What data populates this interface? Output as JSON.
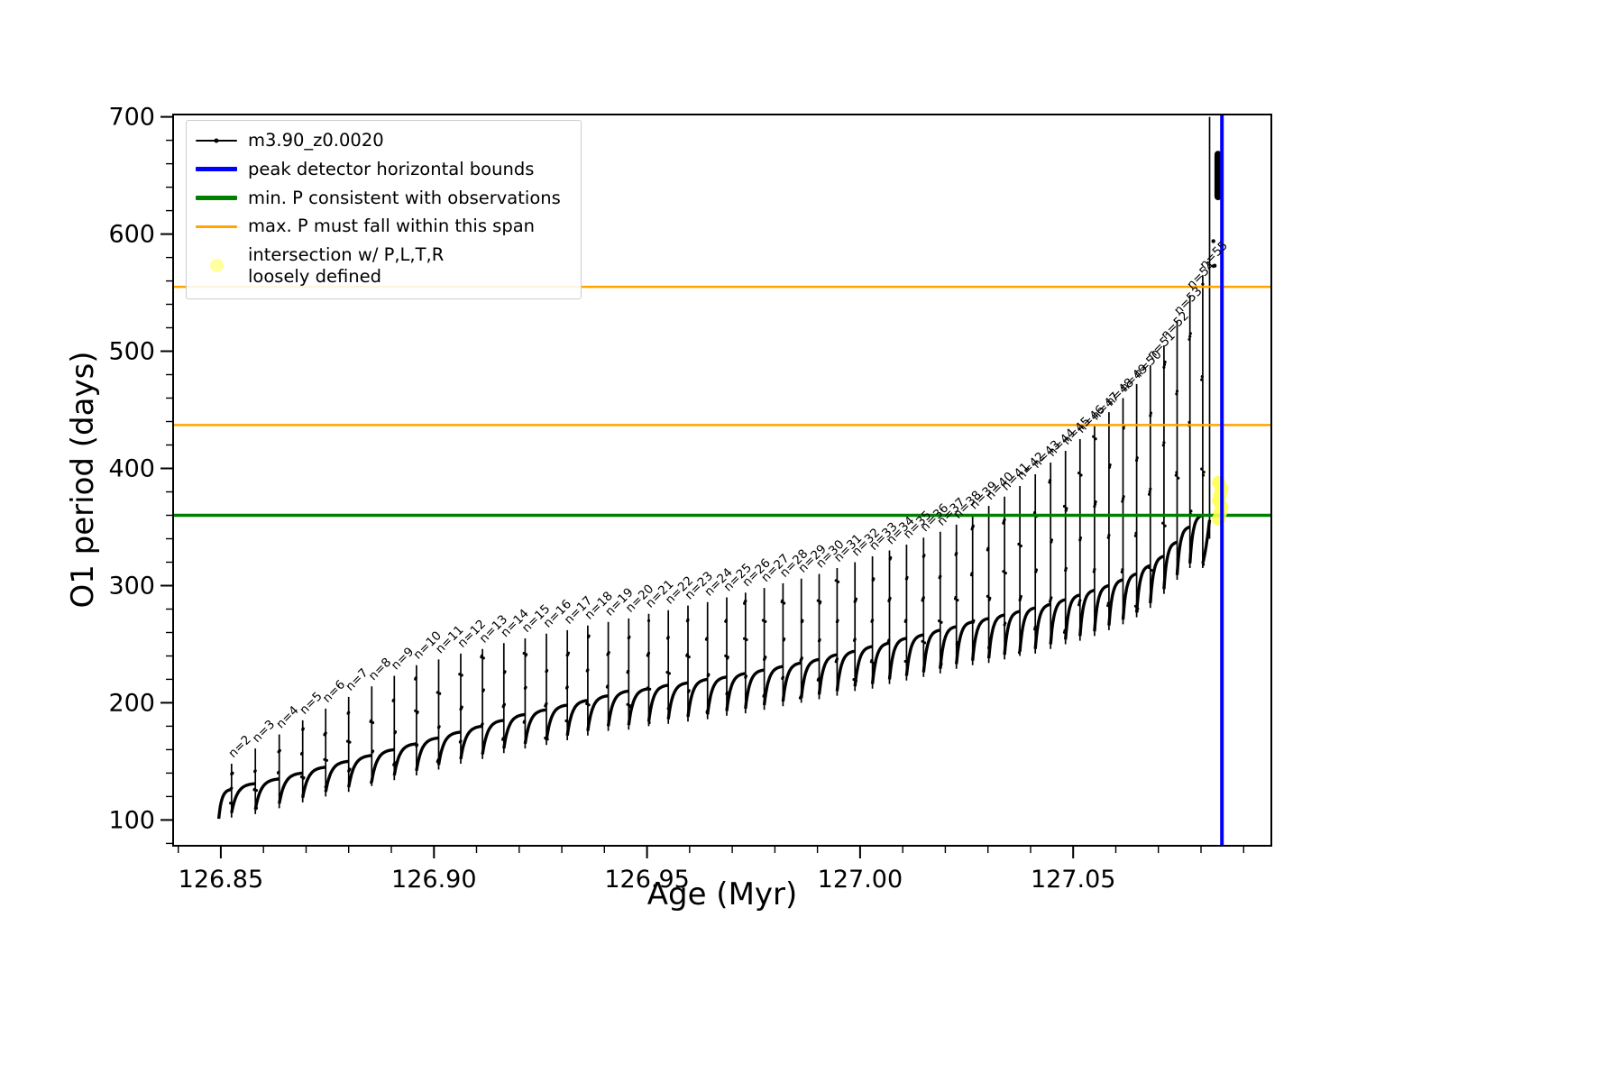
{
  "figure": {
    "background": "#ffffff"
  },
  "legend": {
    "items": [
      {
        "label": "m3.90_z0.0020",
        "sample": {
          "kind": "line-dot",
          "color": "#000000",
          "thickness": 1.5
        }
      },
      {
        "label": "peak detector horizontal bounds",
        "sample": {
          "kind": "line",
          "color": "#0000ff",
          "thickness": 5
        }
      },
      {
        "label": "min. P consistent with observations",
        "sample": {
          "kind": "line",
          "color": "#008000",
          "thickness": 5
        }
      },
      {
        "label": "max. P must fall within this span",
        "sample": {
          "kind": "line",
          "color": "#ffa500",
          "thickness": 3
        }
      },
      {
        "label": "intersection w/ P,L,T,R\nloosely defined",
        "sample": {
          "kind": "circle",
          "color": "#ffff4d",
          "size": 15,
          "opacity": 0.55
        }
      }
    ]
  },
  "chart_data": {
    "type": "line",
    "title": "",
    "xlabel": "Age (Myr)",
    "ylabel": "O1 period (days)",
    "xlim": [
      126.8388,
      127.0965
    ],
    "ylim": [
      78,
      702
    ],
    "x_major_ticks": [
      126.85,
      126.9,
      126.95,
      127.0,
      127.05
    ],
    "x_tick_labels": [
      "126.85",
      "126.90",
      "126.95",
      "127.00",
      "127.05"
    ],
    "x_minor_step": 0.01,
    "y_major_ticks": [
      100,
      200,
      300,
      400,
      500,
      600,
      700
    ],
    "y_tick_labels": [
      "100",
      "200",
      "300",
      "400",
      "500",
      "600",
      "700"
    ],
    "y_minor_step": 20,
    "grid": false,
    "legend_position": "upper-left",
    "tooth_label_prefix": "n=",
    "x_start": 126.8495,
    "horizontal_lines": [
      {
        "name": "max-P-span-upper",
        "y": 555,
        "color": "#ffa500",
        "width": 2.5
      },
      {
        "name": "max-P-span-lower",
        "y": 437,
        "color": "#ffa500",
        "width": 2.5
      },
      {
        "name": "min-P-observed",
        "y": 360,
        "color": "#008000",
        "width": 3.5
      }
    ],
    "vertical_lines": [
      {
        "name": "peak-detector-bound",
        "x": 127.0849,
        "color": "#0000ff",
        "width": 4
      }
    ],
    "intersection_cluster": {
      "x": 127.0845,
      "y_min": 357,
      "y_max": 388,
      "color": "#ffff4d"
    },
    "tail": {
      "x_start": 127.0804,
      "y_start": 319,
      "x_end": 127.082,
      "y_end": 356
    },
    "final_spike": {
      "x": 127.082,
      "y_min": 340,
      "y_max": 700
    },
    "top_cluster": {
      "x": 127.084,
      "y_min": 632,
      "y_max": 668
    },
    "extra_points": [
      {
        "x": 127.0829,
        "y": 594
      },
      {
        "x": 127.0832,
        "y": 573
      }
    ],
    "series": [
      {
        "name": "m3.90_z0.0020",
        "color": "#000000",
        "marker": "point",
        "teeth": [
          {
            "n": 2,
            "x": 126.8525,
            "peak": 148,
            "plateau": 126,
            "trough": 101
          },
          {
            "n": 3,
            "x": 126.8581,
            "peak": 161,
            "plateau": 131,
            "trough": 106
          },
          {
            "n": 4,
            "x": 126.8637,
            "peak": 173,
            "plateau": 135,
            "trough": 109
          },
          {
            "n": 5,
            "x": 126.8692,
            "peak": 185,
            "plateau": 140,
            "trough": 114
          },
          {
            "n": 6,
            "x": 126.8746,
            "peak": 195,
            "plateau": 145,
            "trough": 119
          },
          {
            "n": 7,
            "x": 126.88,
            "peak": 205,
            "plateau": 150,
            "trough": 124
          },
          {
            "n": 8,
            "x": 126.8854,
            "peak": 214,
            "plateau": 155,
            "trough": 128
          },
          {
            "n": 9,
            "x": 126.8907,
            "peak": 223,
            "plateau": 160,
            "trough": 133
          },
          {
            "n": 10,
            "x": 126.8959,
            "peak": 232,
            "plateau": 165,
            "trough": 138
          },
          {
            "n": 11,
            "x": 126.9011,
            "peak": 237,
            "plateau": 170,
            "trough": 142
          },
          {
            "n": 12,
            "x": 126.9063,
            "peak": 242,
            "plateau": 175,
            "trough": 147
          },
          {
            "n": 13,
            "x": 126.9114,
            "peak": 246,
            "plateau": 180,
            "trough": 152
          },
          {
            "n": 14,
            "x": 126.9164,
            "peak": 251,
            "plateau": 185,
            "trough": 156
          },
          {
            "n": 15,
            "x": 126.9214,
            "peak": 255,
            "plateau": 190,
            "trough": 161
          },
          {
            "n": 16,
            "x": 126.9264,
            "peak": 259,
            "plateau": 194,
            "trough": 165
          },
          {
            "n": 17,
            "x": 126.9313,
            "peak": 262,
            "plateau": 198,
            "trough": 168
          },
          {
            "n": 18,
            "x": 126.9361,
            "peak": 266,
            "plateau": 202,
            "trough": 172
          },
          {
            "n": 19,
            "x": 126.9409,
            "peak": 269,
            "plateau": 206,
            "trough": 176
          },
          {
            "n": 20,
            "x": 126.9457,
            "peak": 272,
            "plateau": 210,
            "trough": 180
          },
          {
            "n": 21,
            "x": 126.9504,
            "peak": 276,
            "plateau": 212,
            "trough": 181
          },
          {
            "n": 22,
            "x": 126.955,
            "peak": 279,
            "plateau": 215,
            "trough": 184
          },
          {
            "n": 23,
            "x": 126.9596,
            "peak": 283,
            "plateau": 217,
            "trough": 186
          },
          {
            "n": 24,
            "x": 126.9642,
            "peak": 286,
            "plateau": 220,
            "trough": 188
          },
          {
            "n": 25,
            "x": 126.9687,
            "peak": 290,
            "plateau": 222,
            "trough": 190
          },
          {
            "n": 26,
            "x": 126.9731,
            "peak": 294,
            "plateau": 225,
            "trough": 193
          },
          {
            "n": 27,
            "x": 126.9775,
            "peak": 298,
            "plateau": 228,
            "trough": 195
          },
          {
            "n": 28,
            "x": 126.9819,
            "peak": 302,
            "plateau": 231,
            "trough": 198
          },
          {
            "n": 29,
            "x": 126.9862,
            "peak": 306,
            "plateau": 234,
            "trough": 201
          },
          {
            "n": 30,
            "x": 126.9904,
            "peak": 310,
            "plateau": 237,
            "trough": 204
          },
          {
            "n": 31,
            "x": 126.9946,
            "peak": 315,
            "plateau": 241,
            "trough": 207
          },
          {
            "n": 32,
            "x": 126.9988,
            "peak": 320,
            "plateau": 244,
            "trough": 210
          },
          {
            "n": 33,
            "x": 127.0029,
            "peak": 325,
            "plateau": 248,
            "trough": 214
          },
          {
            "n": 34,
            "x": 127.0069,
            "peak": 330,
            "plateau": 251,
            "trough": 216
          },
          {
            "n": 35,
            "x": 127.0109,
            "peak": 335,
            "plateau": 255,
            "trough": 220
          },
          {
            "n": 36,
            "x": 127.0149,
            "peak": 341,
            "plateau": 258,
            "trough": 223
          },
          {
            "n": 37,
            "x": 127.0188,
            "peak": 346,
            "plateau": 262,
            "trough": 226
          },
          {
            "n": 38,
            "x": 127.0226,
            "peak": 352,
            "plateau": 265,
            "trough": 229
          },
          {
            "n": 39,
            "x": 127.0264,
            "peak": 360,
            "plateau": 269,
            "trough": 233
          },
          {
            "n": 40,
            "x": 127.0302,
            "peak": 368,
            "plateau": 272,
            "trough": 236
          },
          {
            "n": 41,
            "x": 127.0339,
            "peak": 376,
            "plateau": 275,
            "trough": 238
          },
          {
            "n": 42,
            "x": 127.0375,
            "peak": 385,
            "plateau": 278,
            "trough": 241
          },
          {
            "n": 43,
            "x": 127.0411,
            "peak": 395,
            "plateau": 281,
            "trough": 244
          },
          {
            "n": 44,
            "x": 127.0447,
            "peak": 405,
            "plateau": 284,
            "trough": 246
          },
          {
            "n": 45,
            "x": 127.0482,
            "peak": 415,
            "plateau": 288,
            "trough": 250
          },
          {
            "n": 46,
            "x": 127.0516,
            "peak": 425,
            "plateau": 292,
            "trough": 254
          },
          {
            "n": 47,
            "x": 127.055,
            "peak": 436,
            "plateau": 296,
            "trough": 257
          },
          {
            "n": 48,
            "x": 127.0584,
            "peak": 448,
            "plateau": 300,
            "trough": 261
          },
          {
            "n": 49,
            "x": 127.0617,
            "peak": 460,
            "plateau": 305,
            "trough": 266
          },
          {
            "n": 50,
            "x": 127.0649,
            "peak": 472,
            "plateau": 310,
            "trough": 271
          },
          {
            "n": 51,
            "x": 127.0681,
            "peak": 488,
            "plateau": 317,
            "trough": 277
          },
          {
            "n": 52,
            "x": 127.0713,
            "peak": 505,
            "plateau": 325,
            "trough": 285
          },
          {
            "n": 53,
            "x": 127.0744,
            "peak": 526,
            "plateau": 337,
            "trough": 297
          },
          {
            "n": 54,
            "x": 127.0774,
            "peak": 548,
            "plateau": 350,
            "trough": 309
          },
          {
            "n": 55,
            "x": 127.0804,
            "peak": 565,
            "plateau": 360,
            "trough": 319
          }
        ]
      }
    ]
  }
}
